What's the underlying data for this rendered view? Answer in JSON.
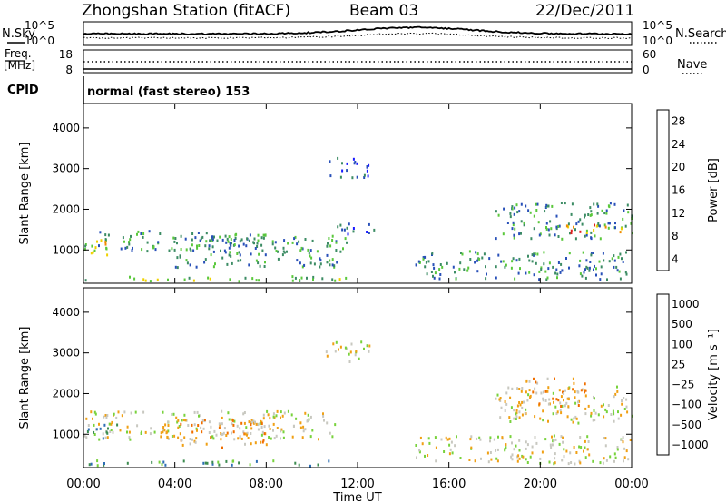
{
  "header": {
    "station": "Zhongshan Station (fitACF)",
    "beam": "Beam 03",
    "date": "22/Dec/2011"
  },
  "summary": {
    "nsky_label": "N.Sky",
    "nsky_ticks": [
      "10^5",
      "10^0"
    ],
    "nsearch_label": "N.Search",
    "nsearch_ticks": [
      "10^5",
      "10^0"
    ],
    "freq_label": "Freq.",
    "freq_unit": "[MHz]",
    "freq_ticks": [
      "18",
      "8"
    ],
    "nave_label": "Nave",
    "nave_ticks": [
      "60",
      "0"
    ],
    "cpid_label": "CPID",
    "cpid_text": "normal (fast stereo) 153"
  },
  "chart_data": [
    {
      "type": "heatmap",
      "title": "",
      "xlabel": "Time UT",
      "ylabel": "Slant Range [km]",
      "x_tick_labels": [
        "00:00",
        "04:00",
        "08:00",
        "12:00",
        "16:00",
        "20:00",
        "00:00"
      ],
      "x_ticks_hours": [
        0,
        4,
        8,
        12,
        16,
        20,
        24
      ],
      "xlim_hours": [
        0,
        24
      ],
      "y_tick_labels": [
        "1000",
        "2000",
        "3000",
        "4000"
      ],
      "y_ticks": [
        1000,
        2000,
        3000,
        4000
      ],
      "ylim": [
        180,
        4600
      ],
      "colorbar": {
        "label": "Power [dB]",
        "ticks": [
          "4",
          "8",
          "12",
          "16",
          "20",
          "24",
          "28"
        ],
        "colors": [
          "#1a1aff",
          "#2850b8",
          "#3c8c64",
          "#5ac83c",
          "#f0d200",
          "#f08c00",
          "#e02020"
        ]
      },
      "scatter_regions": [
        {
          "t0": 0,
          "t1": 11.5,
          "r0": 250,
          "r1": 380,
          "level": 3
        },
        {
          "t0": 0,
          "t1": 8,
          "r0": 1000,
          "r1": 1500,
          "level": 2
        },
        {
          "t0": 0.3,
          "t1": 1.2,
          "r0": 900,
          "r1": 1300,
          "level": 5
        },
        {
          "t0": 4,
          "t1": 11.5,
          "r0": 600,
          "r1": 1400,
          "level": 2
        },
        {
          "t0": 11,
          "t1": 13,
          "r0": 1400,
          "r1": 1700,
          "level": 1
        },
        {
          "t0": 14.5,
          "t1": 24,
          "r0": 300,
          "r1": 1000,
          "level": 2
        },
        {
          "t0": 18,
          "t1": 24,
          "r0": 1300,
          "r1": 2200,
          "level": 2
        },
        {
          "t0": 21,
          "t1": 24,
          "r0": 1450,
          "r1": 1650,
          "level": 5
        },
        {
          "t0": 10.5,
          "t1": 12.5,
          "r0": 2800,
          "r1": 3300,
          "level": 1
        }
      ]
    },
    {
      "type": "heatmap",
      "title": "",
      "xlabel": "Time UT",
      "ylabel": "Slant Range [km]",
      "x_tick_labels": [
        "00:00",
        "04:00",
        "08:00",
        "12:00",
        "16:00",
        "20:00",
        "00:00"
      ],
      "x_ticks_hours": [
        0,
        4,
        8,
        12,
        16,
        20,
        24
      ],
      "xlim_hours": [
        0,
        24
      ],
      "y_tick_labels": [
        "1000",
        "2000",
        "3000",
        "4000"
      ],
      "y_ticks": [
        1000,
        2000,
        3000,
        4000
      ],
      "ylim": [
        180,
        4600
      ],
      "colorbar": {
        "label": "Velocity [m s⁻¹]",
        "ticks": [
          "1000",
          "500",
          "100",
          "25",
          "−25",
          "−100",
          "−500",
          "−1000"
        ],
        "colors": [
          "#1e46c8",
          "#2d6eb4",
          "#3c8c50",
          "#78d23c",
          "#c8c8c0",
          "#f0a014",
          "#f06e00",
          "#e01e1e"
        ]
      },
      "scatter_regions": [
        {
          "t0": 0,
          "t1": 11.5,
          "r0": 250,
          "r1": 380,
          "level": 2
        },
        {
          "t0": 0,
          "t1": 11,
          "r0": 900,
          "r1": 1600,
          "level": 4
        },
        {
          "t0": 3,
          "t1": 8,
          "r0": 700,
          "r1": 1400,
          "level": 5
        },
        {
          "t0": 0,
          "t1": 1.5,
          "r0": 900,
          "r1": 1300,
          "level": 2
        },
        {
          "t0": 14.5,
          "t1": 24,
          "r0": 300,
          "r1": 1000,
          "level": 4
        },
        {
          "t0": 18,
          "t1": 24,
          "r0": 1300,
          "r1": 2200,
          "level": 4
        },
        {
          "t0": 19,
          "t1": 22,
          "r0": 1700,
          "r1": 2400,
          "level": 5
        },
        {
          "t0": 10.5,
          "t1": 12.5,
          "r0": 2800,
          "r1": 3300,
          "level": 4
        }
      ]
    }
  ],
  "x_axis_title": "Time UT"
}
